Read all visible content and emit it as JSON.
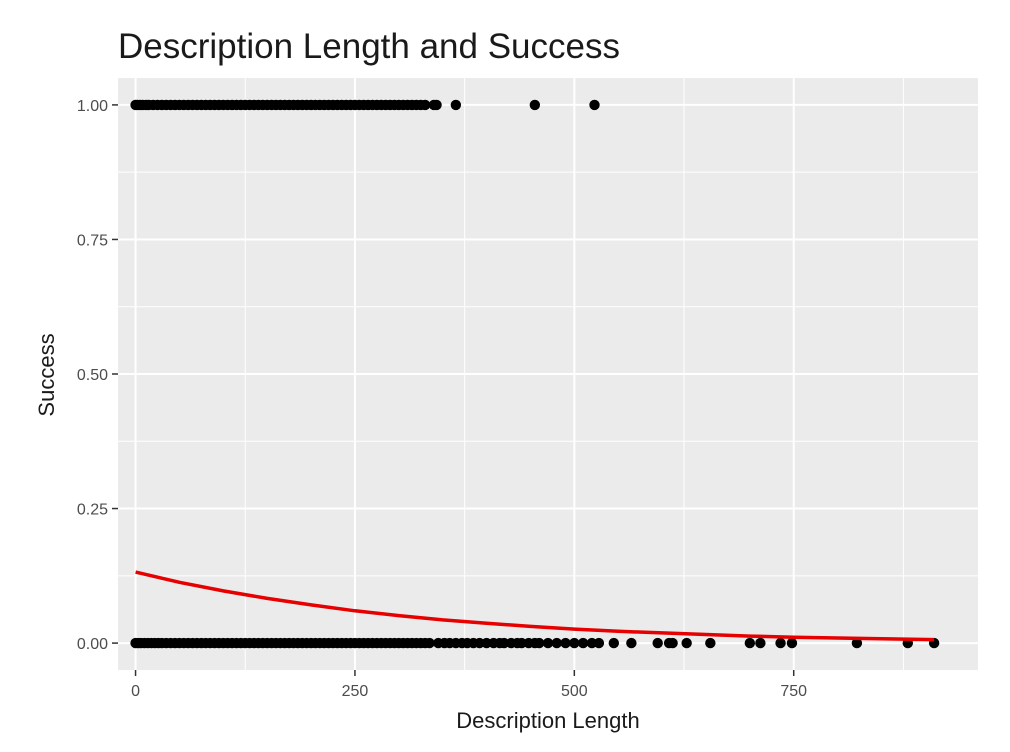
{
  "chart_data": {
    "type": "scatter",
    "title": "Description Length and Success",
    "xlabel": "Description Length",
    "ylabel": "Success",
    "xlim": [
      -20,
      960
    ],
    "ylim": [
      -0.05,
      1.05
    ],
    "x_ticks": [
      0,
      250,
      500,
      750
    ],
    "x_tick_labels": [
      "0",
      "250",
      "500",
      "750"
    ],
    "y_ticks": [
      0,
      0.25,
      0.5,
      0.75,
      1
    ],
    "y_tick_labels": [
      "0.00",
      "0.25",
      "0.50",
      "0.75",
      "1.00"
    ],
    "grid": true,
    "legend": "none",
    "colors": {
      "panel_background": "#ebebeb",
      "grid": "#ffffff",
      "points": "#000000",
      "fit_line": "#e60000"
    },
    "series": [
      {
        "type": "scatter",
        "y": 1,
        "x": [
          0,
          2,
          5,
          8,
          12,
          15,
          20,
          25,
          30,
          35,
          40,
          45,
          50,
          55,
          60,
          65,
          70,
          75,
          80,
          85,
          90,
          95,
          100,
          105,
          110,
          115,
          120,
          125,
          130,
          135,
          140,
          145,
          150,
          155,
          160,
          165,
          170,
          175,
          180,
          185,
          190,
          195,
          200,
          205,
          210,
          215,
          220,
          225,
          230,
          235,
          240,
          245,
          250,
          255,
          260,
          265,
          270,
          275,
          280,
          285,
          290,
          295,
          300,
          305,
          310,
          315,
          320,
          325,
          330,
          340,
          343,
          365,
          455,
          523
        ]
      },
      {
        "type": "scatter",
        "y": 0,
        "x": [
          0,
          3,
          6,
          10,
          14,
          18,
          22,
          26,
          30,
          35,
          40,
          45,
          50,
          55,
          60,
          65,
          70,
          75,
          80,
          85,
          90,
          95,
          100,
          105,
          110,
          115,
          120,
          125,
          130,
          135,
          140,
          145,
          150,
          155,
          160,
          165,
          170,
          175,
          180,
          185,
          190,
          195,
          200,
          205,
          210,
          215,
          220,
          225,
          230,
          235,
          240,
          245,
          250,
          255,
          260,
          265,
          270,
          275,
          280,
          285,
          290,
          295,
          300,
          305,
          310,
          315,
          320,
          325,
          330,
          335,
          345,
          352,
          358,
          365,
          372,
          378,
          385,
          392,
          400,
          408,
          415,
          420,
          428,
          435,
          440,
          448,
          455,
          460,
          470,
          480,
          490,
          500,
          510,
          520,
          528,
          545,
          565,
          595,
          608,
          612,
          628,
          655,
          700,
          712,
          735,
          748,
          822,
          880,
          910
        ]
      },
      {
        "type": "line",
        "name": "",
        "x": [
          0,
          50,
          100,
          150,
          200,
          250,
          300,
          350,
          400,
          450,
          500,
          550,
          600,
          650,
          700,
          750,
          800,
          850,
          910
        ],
        "y": [
          0.132,
          0.113,
          0.097,
          0.083,
          0.071,
          0.06,
          0.051,
          0.043,
          0.037,
          0.031,
          0.026,
          0.022,
          0.019,
          0.016,
          0.013,
          0.011,
          0.0095,
          0.008,
          0.0065
        ]
      }
    ]
  }
}
